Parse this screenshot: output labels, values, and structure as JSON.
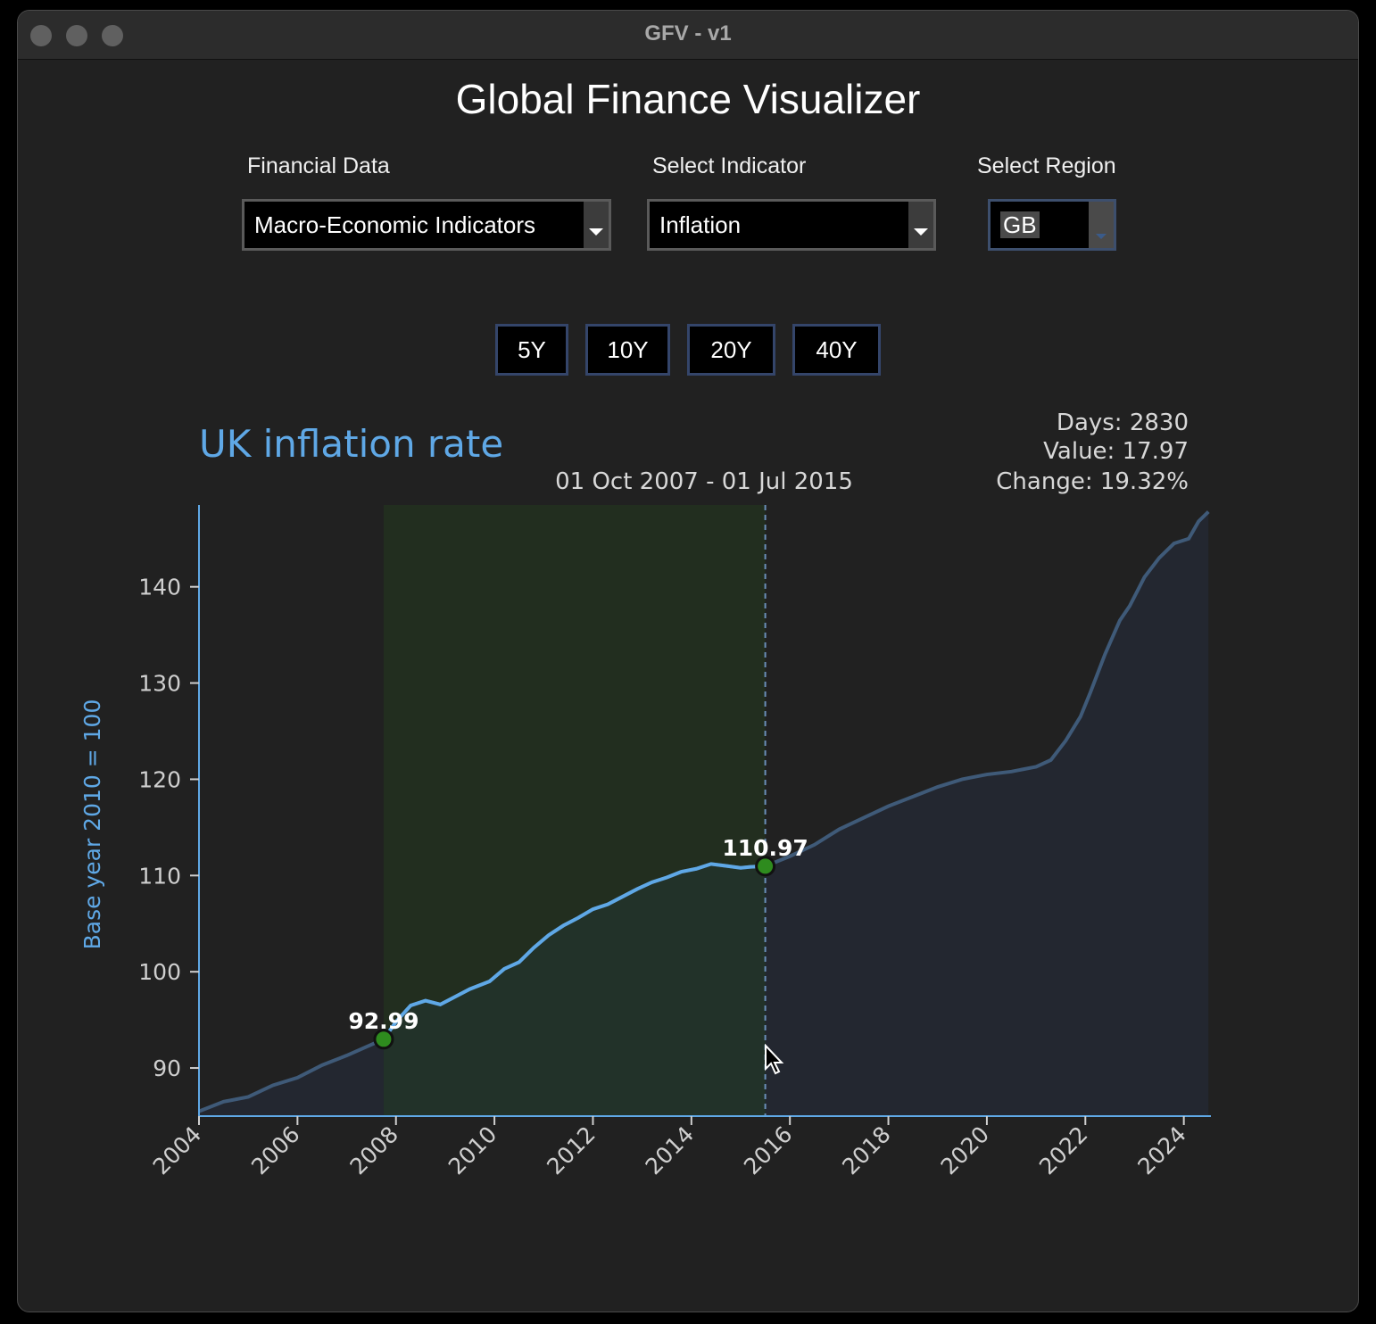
{
  "window": {
    "title": "GFV - v1"
  },
  "app": {
    "title": "Global Finance Visualizer"
  },
  "selectors": {
    "financial_data": {
      "label": "Financial Data",
      "value": "Macro-Economic Indicators"
    },
    "indicator": {
      "label": "Select Indicator",
      "value": "Inflation"
    },
    "region": {
      "label": "Select Region",
      "value": "GB"
    }
  },
  "range_buttons": [
    "5Y",
    "10Y",
    "20Y",
    "40Y"
  ],
  "stats": {
    "days": "Days: 2830",
    "value": "Value: 17.97",
    "change": "Change: 19.32%"
  },
  "colors": {
    "accent": "#5fa8e6",
    "selection": "#22301f",
    "marker": "#2e8b1e",
    "fill": "#232730"
  },
  "chart_data": {
    "type": "area",
    "title": "UK inflation rate",
    "subtitle": "01 Oct 2007 - 01 Jul 2015",
    "ylabel": "Base year 2010 = 100",
    "xlabel": "",
    "xlim": [
      2004.0,
      2024.55
    ],
    "ylim": [
      85,
      148.5
    ],
    "xticks": [
      2004,
      2006,
      2008,
      2010,
      2012,
      2014,
      2016,
      2018,
      2020,
      2022,
      2024
    ],
    "yticks": [
      90,
      100,
      110,
      120,
      130,
      140
    ],
    "grid": false,
    "selection": {
      "start": 2007.75,
      "end": 2015.5
    },
    "annotations": [
      {
        "x": 2007.75,
        "y": 92.99,
        "label": "92.99"
      },
      {
        "x": 2015.5,
        "y": 110.97,
        "label": "110.97"
      }
    ],
    "series": [
      {
        "x": [
          2004.0,
          2004.5,
          2005.0,
          2005.5,
          2006.0,
          2006.5,
          2007.0,
          2007.4,
          2007.75,
          2008.0,
          2008.3,
          2008.6,
          2008.9,
          2009.2,
          2009.5,
          2009.9,
          2010.2,
          2010.5,
          2010.8,
          2011.1,
          2011.4,
          2011.7,
          2012.0,
          2012.3,
          2012.6,
          2012.9,
          2013.2,
          2013.5,
          2013.8,
          2014.1,
          2014.4,
          2014.7,
          2015.0,
          2015.2,
          2015.5,
          2016.0,
          2016.5,
          2017.0,
          2017.5,
          2018.0,
          2018.5,
          2019.0,
          2019.5,
          2020.0,
          2020.5,
          2021.0,
          2021.3,
          2021.6,
          2021.9,
          2022.1,
          2022.4,
          2022.7,
          2022.9,
          2023.2,
          2023.5,
          2023.8,
          2024.1,
          2024.3,
          2024.5
        ],
        "values": [
          85.5,
          86.5,
          87.0,
          88.2,
          89.0,
          90.3,
          91.3,
          92.2,
          92.99,
          94.8,
          96.5,
          97.0,
          96.6,
          97.4,
          98.2,
          99.0,
          100.3,
          101.0,
          102.5,
          103.8,
          104.8,
          105.6,
          106.5,
          107.0,
          107.8,
          108.6,
          109.3,
          109.8,
          110.4,
          110.7,
          111.2,
          111.0,
          110.8,
          110.9,
          110.97,
          112.0,
          113.2,
          114.8,
          116.0,
          117.2,
          118.2,
          119.2,
          120.0,
          120.5,
          120.8,
          121.3,
          122.0,
          124.0,
          126.5,
          129.0,
          133.0,
          136.5,
          138.0,
          141.0,
          143.0,
          144.5,
          145.0,
          146.8,
          147.8
        ]
      }
    ]
  }
}
